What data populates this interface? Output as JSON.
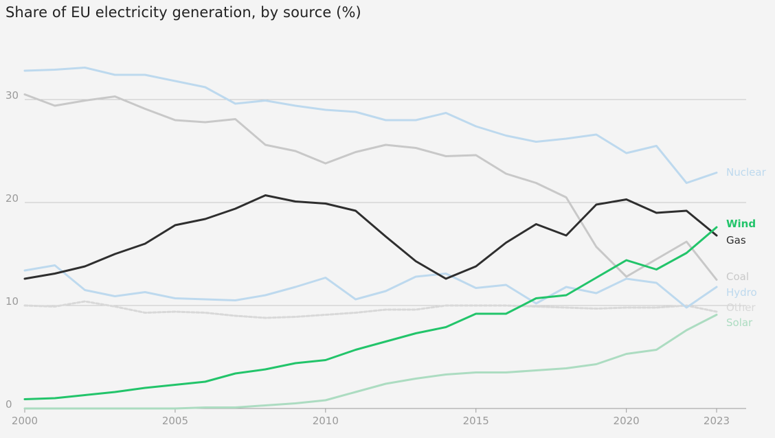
{
  "chart_data": {
    "type": "line",
    "title": "Share of EU electricity generation, by source (%)",
    "xlabel": "",
    "ylabel": "",
    "xlim": [
      2000,
      2023
    ],
    "ylim": [
      0,
      34
    ],
    "x_ticks": [
      {
        "value": 2000,
        "label": "2000"
      },
      {
        "value": 2005,
        "label": "2005"
      },
      {
        "value": 2010,
        "label": "2010"
      },
      {
        "value": 2015,
        "label": "2015"
      },
      {
        "value": 2020,
        "label": "2020"
      },
      {
        "value": 2023,
        "label": "2023"
      }
    ],
    "y_ticks": [
      {
        "value": 0,
        "label": "0"
      },
      {
        "value": 10,
        "label": "10"
      },
      {
        "value": 20,
        "label": "20"
      },
      {
        "value": 30,
        "label": "30"
      }
    ],
    "grid": true,
    "legend": "direct labels at right end of lines",
    "x": [
      2000,
      2001,
      2002,
      2003,
      2004,
      2005,
      2006,
      2007,
      2008,
      2009,
      2010,
      2011,
      2012,
      2013,
      2014,
      2015,
      2016,
      2017,
      2018,
      2019,
      2020,
      2021,
      2022,
      2023
    ],
    "series": [
      {
        "key": "nuclear",
        "name": "Nuclear",
        "color": "#bdd9ee",
        "dashed": false,
        "values": [
          32.8,
          32.9,
          33.1,
          32.4,
          32.4,
          31.8,
          31.2,
          29.6,
          29.9,
          29.4,
          29.0,
          28.8,
          28.0,
          28.0,
          28.7,
          27.4,
          26.5,
          25.9,
          26.2,
          26.6,
          24.8,
          25.5,
          21.9,
          22.9
        ]
      },
      {
        "key": "coal",
        "name": "Coal",
        "color": "#c8c8c8",
        "dashed": false,
        "values": [
          30.5,
          29.4,
          29.9,
          30.3,
          29.1,
          28.0,
          27.8,
          28.1,
          25.6,
          25.0,
          23.8,
          24.9,
          25.6,
          25.3,
          24.5,
          24.6,
          22.8,
          21.9,
          20.5,
          15.7,
          12.8,
          14.5,
          16.2,
          12.5
        ]
      },
      {
        "key": "other",
        "name": "Other",
        "color": "#d8d8d8",
        "dashed": true,
        "values": [
          10.0,
          9.9,
          10.4,
          9.9,
          9.3,
          9.4,
          9.3,
          9.0,
          8.8,
          8.9,
          9.1,
          9.3,
          9.6,
          9.6,
          10.0,
          10.0,
          10.0,
          9.9,
          9.8,
          9.7,
          9.8,
          9.8,
          10.0,
          9.4
        ]
      },
      {
        "key": "hydro",
        "name": "Hydro",
        "color": "#bdd9ee",
        "dashed": false,
        "values": [
          13.4,
          13.9,
          11.5,
          10.9,
          11.3,
          10.7,
          10.6,
          10.5,
          11.0,
          11.8,
          12.7,
          10.6,
          11.4,
          12.8,
          13.1,
          11.7,
          12.0,
          10.2,
          11.8,
          11.2,
          12.6,
          12.2,
          9.8,
          11.8
        ]
      },
      {
        "key": "solar",
        "name": "Solar",
        "color": "#acdcc1",
        "dashed": false,
        "values": [
          0.0,
          0.0,
          0.0,
          0.0,
          0.0,
          0.0,
          0.1,
          0.1,
          0.3,
          0.5,
          0.8,
          1.6,
          2.4,
          2.9,
          3.3,
          3.5,
          3.5,
          3.7,
          3.9,
          4.3,
          5.3,
          5.7,
          7.6,
          9.1
        ]
      },
      {
        "key": "gas",
        "name": "Gas",
        "color": "#2e2e2e",
        "dashed": false,
        "values": [
          12.6,
          13.1,
          13.8,
          15.0,
          16.0,
          17.8,
          18.4,
          19.4,
          20.7,
          20.1,
          19.9,
          19.2,
          16.7,
          14.3,
          12.6,
          13.8,
          16.1,
          17.9,
          16.8,
          19.8,
          20.3,
          19.0,
          19.2,
          16.8
        ]
      },
      {
        "key": "wind",
        "name": "Wind",
        "color": "#22c46a",
        "dashed": false,
        "values": [
          0.9,
          1.0,
          1.3,
          1.6,
          2.0,
          2.3,
          2.6,
          3.4,
          3.8,
          4.4,
          4.7,
          5.7,
          6.5,
          7.3,
          7.9,
          9.2,
          9.2,
          10.7,
          11.0,
          12.7,
          14.4,
          13.5,
          15.1,
          17.6
        ]
      }
    ],
    "end_labels_order": [
      "nuclear",
      "wind",
      "gas",
      "coal",
      "hydro",
      "other",
      "solar"
    ]
  }
}
